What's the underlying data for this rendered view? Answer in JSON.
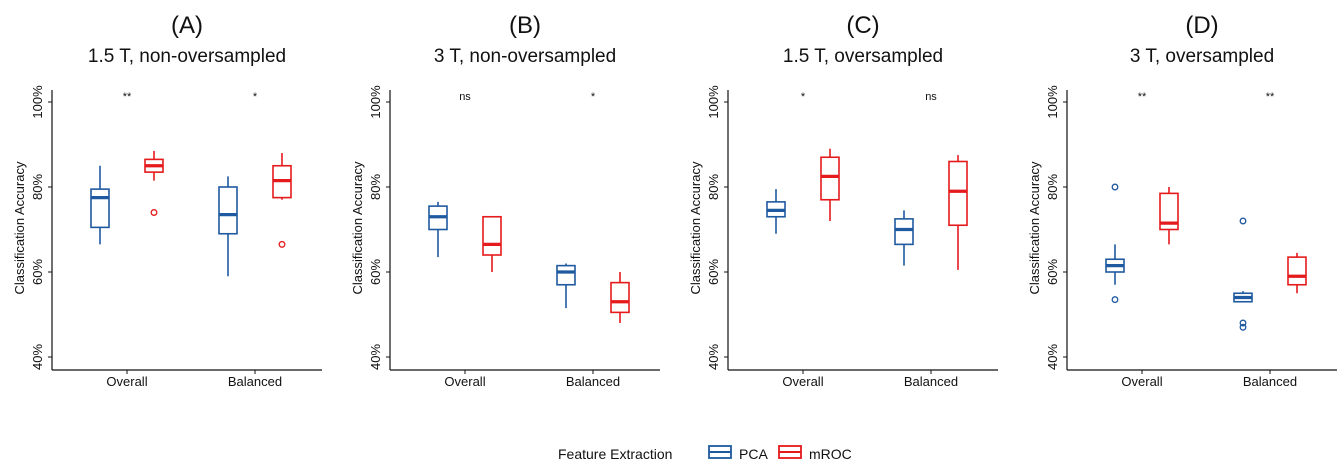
{
  "colors": {
    "PCA": "#1f5aa0",
    "mROC": "#e41a1c",
    "axis": "#111111"
  },
  "legend": {
    "title": "Feature Extraction",
    "items": [
      {
        "name": "PCA",
        "color": "#1f5aa0"
      },
      {
        "name": "mROC",
        "color": "#e41a1c"
      }
    ]
  },
  "chart_data": [
    {
      "type": "boxplot",
      "label": "(A)",
      "title": "1.5 T, non-oversampled",
      "ylabel": "Classification Accuracy",
      "ylim": [
        40,
        100
      ],
      "yticks": [
        "40%",
        "60%",
        "80%",
        "100%"
      ],
      "categories": [
        "Overall",
        "Balanced"
      ],
      "significance": [
        "**",
        "*"
      ],
      "series": [
        {
          "name": "PCA",
          "boxes": [
            {
              "min": 66.5,
              "q1": 70.5,
              "median": 77.5,
              "q3": 79.5,
              "max": 85,
              "outliers": []
            },
            {
              "min": 59,
              "q1": 69,
              "median": 73.5,
              "q3": 80,
              "max": 82.5,
              "outliers": []
            }
          ]
        },
        {
          "name": "mROC",
          "boxes": [
            {
              "min": 81.5,
              "q1": 83.5,
              "median": 85,
              "q3": 86.5,
              "max": 88.5,
              "outliers": [
                74
              ]
            },
            {
              "min": 77,
              "q1": 77.5,
              "median": 81.5,
              "q3": 85,
              "max": 88,
              "outliers": [
                66.5
              ]
            }
          ]
        }
      ]
    },
    {
      "type": "boxplot",
      "label": "(B)",
      "title": "3 T, non-oversampled",
      "ylabel": "Classification Accuracy",
      "ylim": [
        40,
        100
      ],
      "yticks": [
        "40%",
        "60%",
        "80%",
        "100%"
      ],
      "categories": [
        "Overall",
        "Balanced"
      ],
      "significance": [
        "ns",
        "*"
      ],
      "series": [
        {
          "name": "PCA",
          "boxes": [
            {
              "min": 63.5,
              "q1": 70,
              "median": 73,
              "q3": 75.5,
              "max": 76.5,
              "outliers": []
            },
            {
              "min": 51.5,
              "q1": 57,
              "median": 60,
              "q3": 61.5,
              "max": 62,
              "outliers": []
            }
          ]
        },
        {
          "name": "mROC",
          "boxes": [
            {
              "min": 60,
              "q1": 64,
              "median": 66.5,
              "q3": 73,
              "max": 73,
              "outliers": []
            },
            {
              "min": 48,
              "q1": 50.5,
              "median": 53,
              "q3": 57.5,
              "max": 60,
              "outliers": []
            }
          ]
        }
      ]
    },
    {
      "type": "boxplot",
      "label": "(C)",
      "title": "1.5 T, oversampled",
      "ylabel": "Classification Accuracy",
      "ylim": [
        40,
        100
      ],
      "yticks": [
        "40%",
        "60%",
        "80%",
        "100%"
      ],
      "categories": [
        "Overall",
        "Balanced"
      ],
      "significance": [
        "*",
        "ns"
      ],
      "series": [
        {
          "name": "PCA",
          "boxes": [
            {
              "min": 69,
              "q1": 73,
              "median": 74.5,
              "q3": 76.5,
              "max": 79.5,
              "outliers": []
            },
            {
              "min": 61.5,
              "q1": 66.5,
              "median": 70,
              "q3": 72.5,
              "max": 74.5,
              "outliers": []
            }
          ]
        },
        {
          "name": "mROC",
          "boxes": [
            {
              "min": 72,
              "q1": 77,
              "median": 82.5,
              "q3": 87,
              "max": 89,
              "outliers": []
            },
            {
              "min": 60.5,
              "q1": 71,
              "median": 79,
              "q3": 86,
              "max": 87.5,
              "outliers": []
            }
          ]
        }
      ]
    },
    {
      "type": "boxplot",
      "label": "(D)",
      "title": "3 T, oversampled",
      "ylabel": "Classification Accuracy",
      "ylim": [
        40,
        100
      ],
      "yticks": [
        "40%",
        "60%",
        "80%",
        "100%"
      ],
      "categories": [
        "Overall",
        "Balanced"
      ],
      "significance": [
        "**",
        "**"
      ],
      "series": [
        {
          "name": "PCA",
          "boxes": [
            {
              "min": 57,
              "q1": 60,
              "median": 61.5,
              "q3": 63,
              "max": 66.5,
              "outliers": [
                80,
                53.5
              ]
            },
            {
              "min": 53,
              "q1": 53,
              "median": 54,
              "q3": 55,
              "max": 55.5,
              "outliers": [
                72,
                48,
                47
              ]
            }
          ]
        },
        {
          "name": "mROC",
          "boxes": [
            {
              "min": 66.5,
              "q1": 70,
              "median": 71.5,
              "q3": 78.5,
              "max": 80,
              "outliers": []
            },
            {
              "min": 55,
              "q1": 57,
              "median": 59,
              "q3": 63.5,
              "max": 64.5,
              "outliers": []
            }
          ]
        }
      ]
    }
  ]
}
